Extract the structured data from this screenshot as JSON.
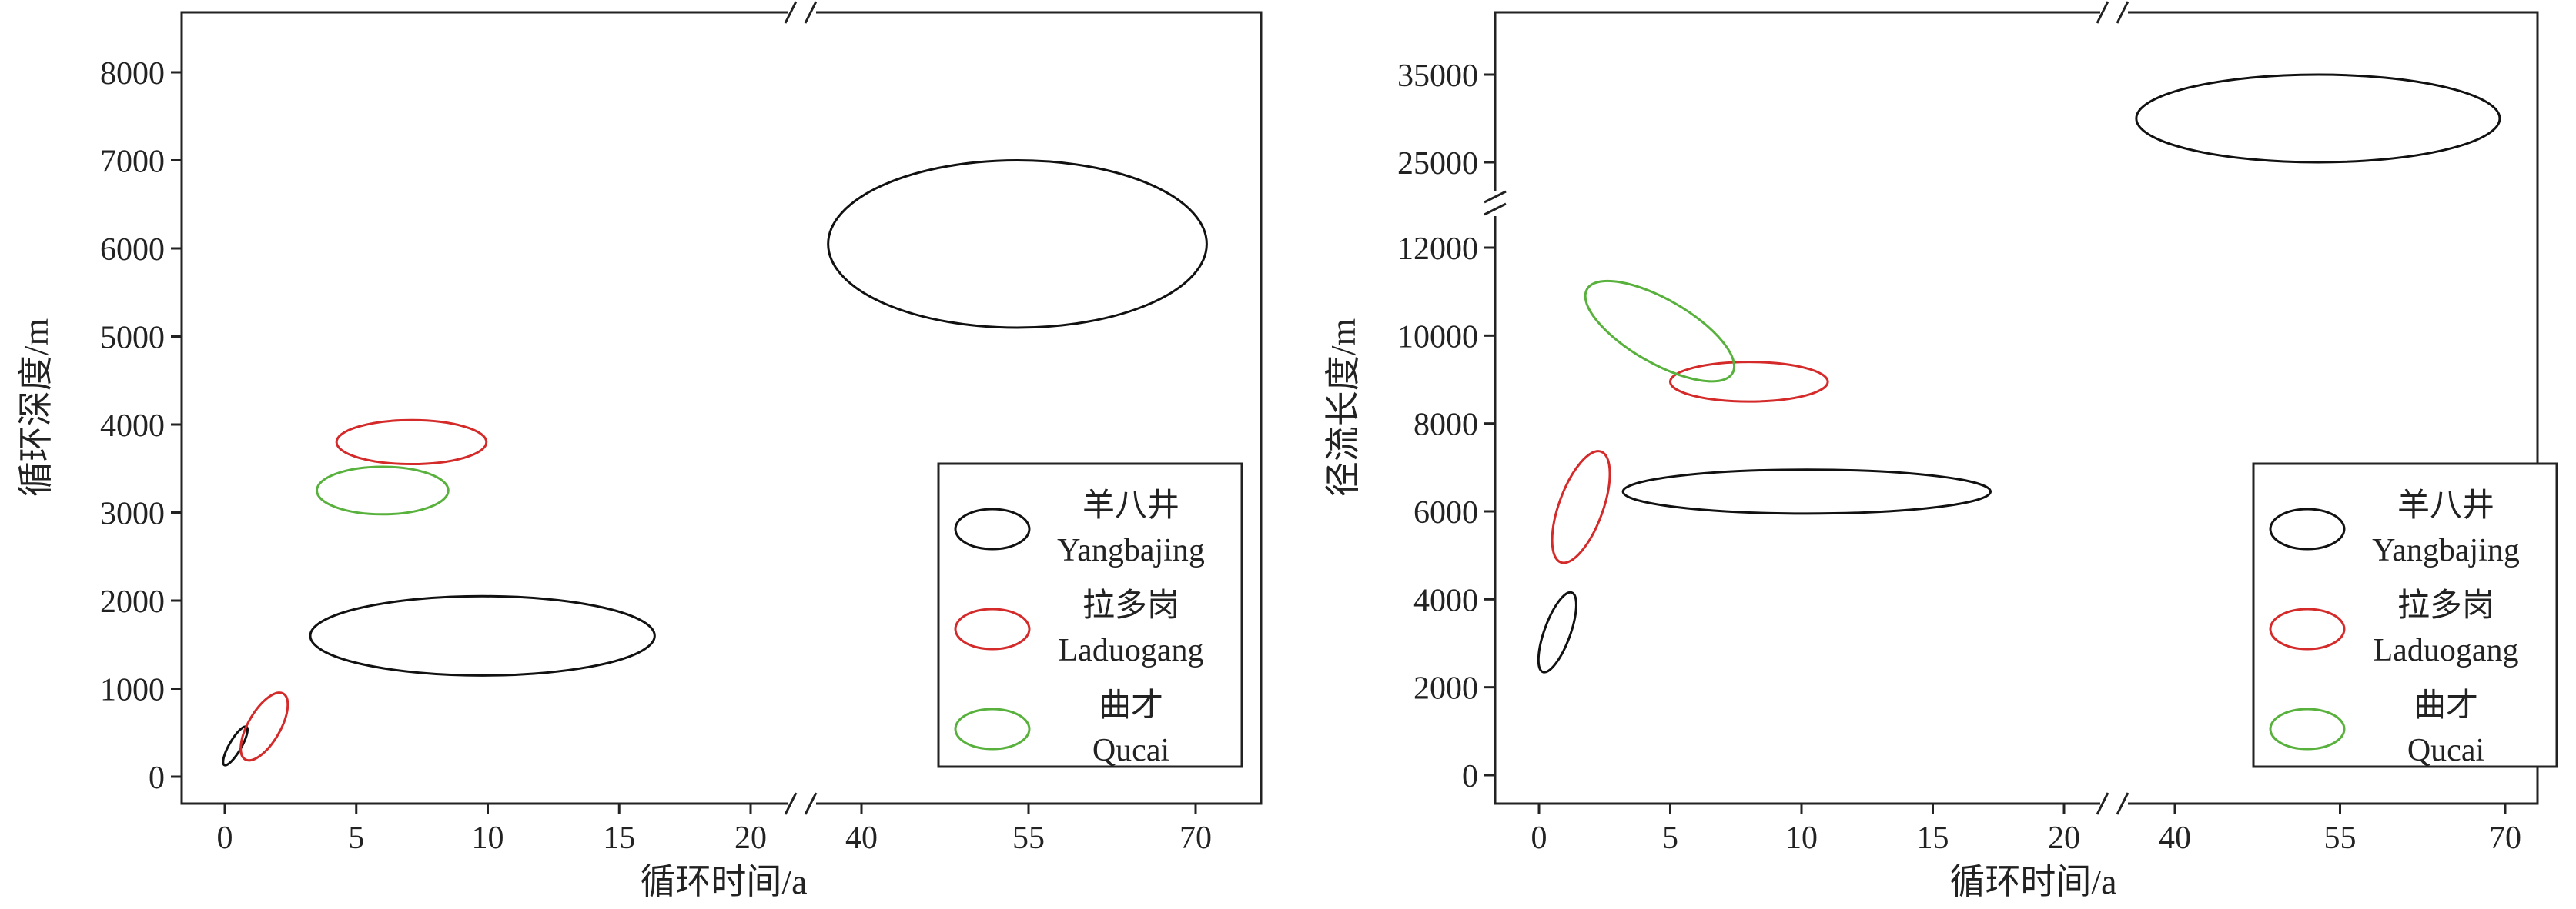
{
  "chart_data": [
    {
      "type": "scatter",
      "note_type": "ellipse-ranges",
      "xlabel": "循环时间/a",
      "ylabel": "循环深度/m",
      "x_ticks": [
        "0",
        "5",
        "10",
        "15",
        "20",
        "40",
        "55",
        "70"
      ],
      "y_ticks": [
        "0",
        "1000",
        "2000",
        "3000",
        "4000",
        "5000",
        "6000",
        "7000",
        "8000"
      ],
      "x_break": {
        "from": 20,
        "to": 40
      },
      "legend": {
        "placement": "bottom-right",
        "entries": [
          {
            "cn": "羊八井",
            "en": "Yangbajing",
            "color": "#111111"
          },
          {
            "cn": "拉多岗",
            "en": "Laduogang",
            "color": "#d42a2a"
          },
          {
            "cn": "曲才",
            "en": "Qucai",
            "color": "#58b13c"
          }
        ]
      },
      "series": [
        {
          "name": "羊八井 Yangbajing",
          "color": "#111111",
          "ellipses": [
            {
              "cx": 0.4,
              "cy": 350,
              "x_range": [
                0.1,
                0.7
              ],
              "y_range": [
                120,
                600
              ],
              "angle": 60
            },
            {
              "cx": 9.8,
              "cy": 1600,
              "x_range": [
                3.3,
                16.4
              ],
              "y_range": [
                1150,
                2050
              ],
              "angle": 0
            },
            {
              "cx": 54,
              "cy": 6050,
              "x_range": [
                36,
                72
              ],
              "y_range": [
                5100,
                7000
              ],
              "angle": 0
            }
          ]
        },
        {
          "name": "拉多岗 Laduogang",
          "color": "#d42a2a",
          "ellipses": [
            {
              "cx": 1.5,
              "cy": 570,
              "x_range": [
                0.7,
                2.3
              ],
              "y_range": [
                200,
                940
              ],
              "angle": 60
            },
            {
              "cx": 7.1,
              "cy": 3800,
              "x_range": [
                4.2,
                9.9
              ],
              "y_range": [
                3550,
                4050
              ],
              "angle": 0
            }
          ]
        },
        {
          "name": "曲才 Qucai",
          "color": "#58b13c",
          "ellipses": [
            {
              "cx": 6.0,
              "cy": 3250,
              "x_range": [
                3.5,
                8.5
              ],
              "y_range": [
                2980,
                3520
              ],
              "angle": 0
            }
          ]
        }
      ]
    },
    {
      "type": "scatter",
      "note_type": "ellipse-ranges",
      "xlabel": "循环时间/a",
      "ylabel": "径流长度/m",
      "x_ticks": [
        "0",
        "5",
        "10",
        "15",
        "20",
        "40",
        "55",
        "70"
      ],
      "y_ticks": [
        "0",
        "2000",
        "4000",
        "6000",
        "8000",
        "10000",
        "12000",
        "25000",
        "35000"
      ],
      "x_break": {
        "from": 20,
        "to": 40
      },
      "y_break": {
        "from": 12000,
        "to": 25000
      },
      "legend": {
        "placement": "bottom-right",
        "entries": [
          {
            "cn": "羊八井",
            "en": "Yangbajing",
            "color": "#111111"
          },
          {
            "cn": "拉多岗",
            "en": "Laduogang",
            "color": "#d42a2a"
          },
          {
            "cn": "曲才",
            "en": "Qucai",
            "color": "#58b13c"
          }
        ]
      },
      "series": [
        {
          "name": "羊八井 Yangbajing",
          "color": "#111111",
          "ellipses": [
            {
              "cx": 0.7,
              "cy": 3250,
              "x_range": [
                0.1,
                1.4
              ],
              "y_range": [
                2300,
                4100
              ],
              "angle": 70
            },
            {
              "cx": 10.2,
              "cy": 6450,
              "x_range": [
                2.0,
                16.0
              ],
              "y_range": [
                5950,
                6950
              ],
              "angle": 0
            },
            {
              "cx": 53,
              "cy": 30000,
              "x_range": [
                36,
                71
              ],
              "y_range": [
                25000,
                35000
              ],
              "angle": 0
            }
          ]
        },
        {
          "name": "拉多岗 Laduogang",
          "color": "#d42a2a",
          "ellipses": [
            {
              "cx": 1.6,
              "cy": 6100,
              "x_range": [
                0.5,
                2.7
              ],
              "y_range": [
                4900,
                7300
              ],
              "angle": 70
            },
            {
              "cx": 8.0,
              "cy": 8950,
              "x_range": [
                5.0,
                11.0
              ],
              "y_range": [
                8500,
                9400
              ],
              "angle": 0
            }
          ]
        },
        {
          "name": "曲才 Qucai",
          "color": "#58b13c",
          "ellipses": [
            {
              "cx": 4.6,
              "cy": 10100,
              "x_range": [
                1.8,
                7.5
              ],
              "y_range": [
                9100,
                11000
              ],
              "angle": -30
            }
          ]
        }
      ]
    }
  ]
}
